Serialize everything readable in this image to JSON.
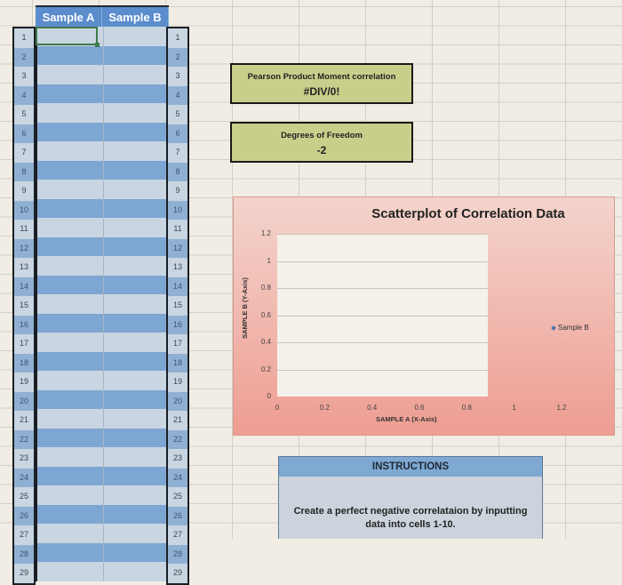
{
  "table": {
    "headers": [
      "Sample A",
      "Sample B"
    ],
    "row_numbers": [
      "1",
      "2",
      "3",
      "4",
      "5",
      "6",
      "7",
      "8",
      "9",
      "10",
      "11",
      "12",
      "13",
      "14",
      "15",
      "16",
      "17",
      "18",
      "19",
      "20",
      "21",
      "22",
      "23",
      "24",
      "25",
      "26",
      "27",
      "28",
      "29"
    ],
    "sample_a_values": [],
    "sample_b_values": []
  },
  "stats": {
    "pearson_label": "Pearson Product Moment correlation",
    "pearson_value": "#DIV/0!",
    "df_label": "Degrees of Freedom",
    "df_value": "-2"
  },
  "chart_data": {
    "type": "scatter",
    "title": "Scatterplot of Correlation Data",
    "xlabel": "SAMPLE A (X-Axis)",
    "ylabel": "SAMPLE B (Y-Axis)",
    "x_ticks": [
      "0",
      "0.2",
      "0.4",
      "0.6",
      "0.8",
      "1",
      "1.2"
    ],
    "y_ticks": [
      "0",
      "0.2",
      "0.4",
      "0.6",
      "0.8",
      "1",
      "1.2"
    ],
    "xlim": [
      0,
      1.2
    ],
    "ylim": [
      0,
      1.2
    ],
    "grid": true,
    "legend_position": "right",
    "series": [
      {
        "name": "Sample B",
        "x": [],
        "y": []
      }
    ]
  },
  "instructions": {
    "header": "INSTRUCTIONS",
    "body": "Create a perfect negative correlataion by inputting data into cells 1-10."
  }
}
